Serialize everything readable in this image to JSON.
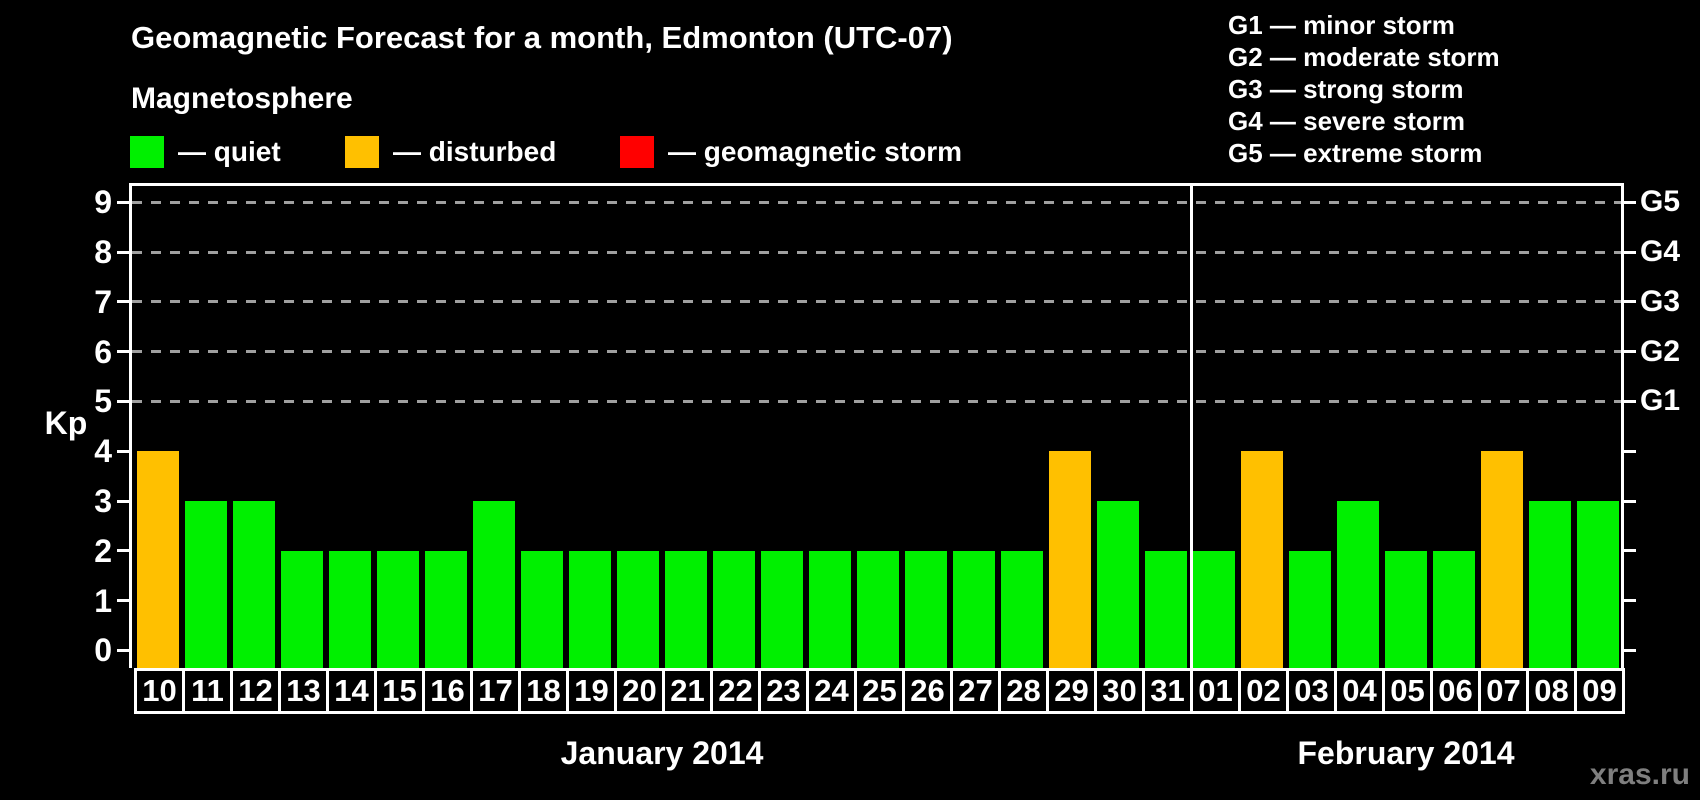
{
  "title": "Geomagnetic Forecast for a month, Edmonton (UTC-07)",
  "subtitle": "Magnetosphere",
  "legend": {
    "items": [
      {
        "key": "quiet",
        "label": "— quiet"
      },
      {
        "key": "disturbed",
        "label": "— disturbed"
      },
      {
        "key": "storm",
        "label": "— geomagnetic storm"
      }
    ]
  },
  "storm_scale": {
    "items": [
      {
        "label": "G1 — minor storm"
      },
      {
        "label": "G2 — moderate storm"
      },
      {
        "label": "G3 — strong storm"
      },
      {
        "label": "G4 — severe storm"
      },
      {
        "label": "G5 — extreme storm"
      }
    ]
  },
  "colors": {
    "background": "#000000",
    "quiet": "#00f000",
    "disturbed": "#ffc000",
    "storm": "#ff0000",
    "axis": "#ffffff",
    "grid": "#a0a0a0",
    "watermark": "#7f7f7f"
  },
  "watermark": "xras.ru",
  "chart_data": {
    "type": "bar",
    "title": "Geomagnetic Forecast for a month, Edmonton (UTC-07)",
    "ylabel": "Kp",
    "ylim": [
      0,
      9.4
    ],
    "yticks": [
      0,
      1,
      2,
      3,
      4,
      5,
      6,
      7,
      8,
      9
    ],
    "gridlines_kp": [
      5,
      6,
      7,
      8,
      9
    ],
    "grid": "dashed, only at storm levels G1-G5",
    "legend_position": "top",
    "right_axis_labels": [
      {
        "kp": 5,
        "label": "G1"
      },
      {
        "kp": 6,
        "label": "G2"
      },
      {
        "kp": 7,
        "label": "G3"
      },
      {
        "kp": 8,
        "label": "G4"
      },
      {
        "kp": 9,
        "label": "G5"
      }
    ],
    "months": [
      {
        "label": "January 2014",
        "days": 22
      },
      {
        "label": "February 2014",
        "days": 9
      }
    ],
    "categories": [
      "10",
      "11",
      "12",
      "13",
      "14",
      "15",
      "16",
      "17",
      "18",
      "19",
      "20",
      "21",
      "22",
      "23",
      "24",
      "25",
      "26",
      "27",
      "28",
      "29",
      "30",
      "31",
      "01",
      "02",
      "03",
      "04",
      "05",
      "06",
      "07",
      "08",
      "09"
    ],
    "values": [
      4,
      3,
      3,
      2,
      2,
      2,
      2,
      3,
      2,
      2,
      2,
      2,
      2,
      2,
      2,
      2,
      2,
      2,
      2,
      4,
      3,
      2,
      2,
      4,
      2,
      3,
      2,
      2,
      4,
      3,
      3
    ],
    "statuses": [
      "disturbed",
      "quiet",
      "quiet",
      "quiet",
      "quiet",
      "quiet",
      "quiet",
      "quiet",
      "quiet",
      "quiet",
      "quiet",
      "quiet",
      "quiet",
      "quiet",
      "quiet",
      "quiet",
      "quiet",
      "quiet",
      "quiet",
      "disturbed",
      "quiet",
      "quiet",
      "quiet",
      "disturbed",
      "quiet",
      "quiet",
      "quiet",
      "quiet",
      "disturbed",
      "quiet",
      "quiet"
    ]
  }
}
